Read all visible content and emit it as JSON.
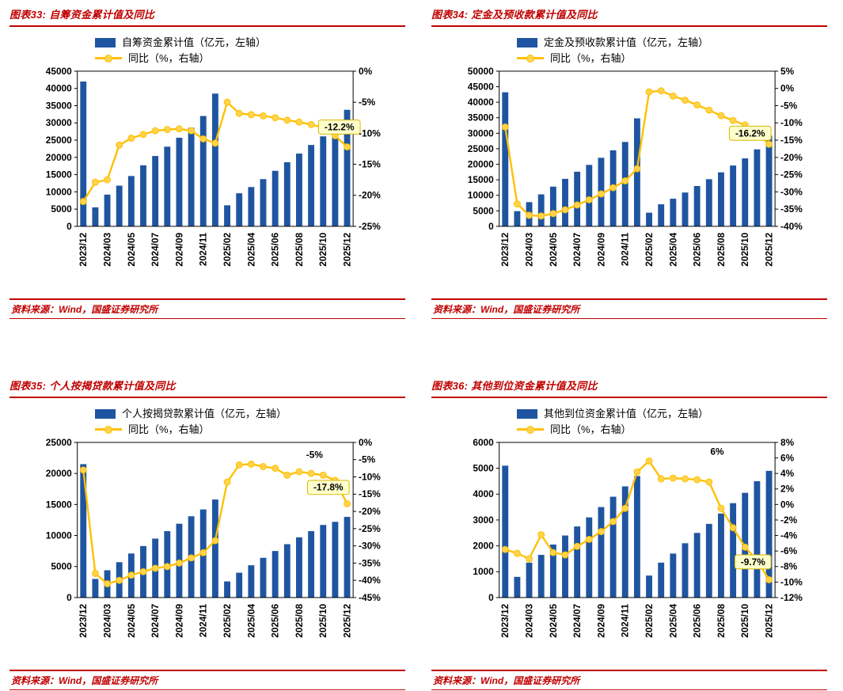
{
  "palette": {
    "accent_red": "#C00000",
    "bar_color": "#1F55A0",
    "line_color": "#FFC000",
    "marker_fill": "#FFD34D",
    "annotation_bg": "#FFFFCC",
    "annotation_border": "#D8B500",
    "axis_text": "#000000",
    "plot_border": "#000000"
  },
  "source_note": "资料来源：Wind，国盛证券研究所",
  "chart_data": [
    {
      "id": "figure-33",
      "type": "combo",
      "title": "图表33:  自筹资金累计值及同比",
      "legend_position": "top",
      "categories": [
        "2023/12",
        "2024/02",
        "2024/03",
        "2024/04",
        "2024/05",
        "2024/06",
        "2024/07",
        "2024/08",
        "2024/09",
        "2024/10",
        "2024/11",
        "2024/12",
        "2025/02",
        "2025/03",
        "2025/04",
        "2025/05",
        "2025/06",
        "2025/07",
        "2025/08",
        "2025/09",
        "2025/10",
        "2025/11",
        "2025/12"
      ],
      "x_label_every": 2,
      "series": [
        {
          "name": "自筹资金累计值（亿元，左轴）",
          "type": "bar",
          "axis": "left",
          "values": [
            42000,
            5500,
            9200,
            11800,
            14600,
            17700,
            20400,
            23100,
            25700,
            28600,
            32000,
            38500,
            6100,
            9600,
            11400,
            13700,
            16100,
            18600,
            21100,
            23600,
            26100,
            28300,
            33800
          ]
        },
        {
          "name": "同比（%，右轴）",
          "type": "line",
          "axis": "right",
          "values": [
            -21.0,
            -17.9,
            -17.5,
            -11.9,
            -10.8,
            -10.2,
            -9.6,
            -9.4,
            -9.3,
            -9.6,
            -10.9,
            -11.6,
            -5.0,
            -6.8,
            -7.0,
            -7.2,
            -7.5,
            -7.9,
            -8.2,
            -8.6,
            -9.1,
            -10.4,
            -12.2
          ]
        }
      ],
      "left_axis": {
        "min": 0,
        "max": 45000,
        "step": 5000
      },
      "right_axis": {
        "min": -25,
        "max": 0,
        "step": 5,
        "suffix": "%"
      },
      "annotations": [
        {
          "text": "-12.2%",
          "fx": 0.95,
          "fy": 0.36,
          "boxed": true
        }
      ]
    },
    {
      "id": "figure-34",
      "type": "combo",
      "title": "图表34:  定金及预收款累计值及同比",
      "legend_position": "top",
      "categories": [
        "2023/12",
        "2024/02",
        "2024/03",
        "2024/04",
        "2024/05",
        "2024/06",
        "2024/07",
        "2024/08",
        "2024/09",
        "2024/10",
        "2024/11",
        "2024/12",
        "2025/02",
        "2025/03",
        "2025/04",
        "2025/05",
        "2025/06",
        "2025/07",
        "2025/08",
        "2025/09",
        "2025/10",
        "2025/11",
        "2025/12"
      ],
      "x_label_every": 2,
      "series": [
        {
          "name": "定金及预收款累计值（亿元，左轴）",
          "type": "bar",
          "axis": "left",
          "values": [
            43200,
            4900,
            7800,
            10300,
            12800,
            15300,
            17600,
            19800,
            22100,
            24500,
            27200,
            34800,
            4400,
            7100,
            8900,
            10900,
            13000,
            15200,
            17400,
            19600,
            21900,
            24800,
            29200
          ]
        },
        {
          "name": "同比（%，右轴）",
          "type": "line",
          "axis": "right",
          "values": [
            -11.2,
            -33.5,
            -36.8,
            -37.0,
            -36.3,
            -35.2,
            -33.8,
            -32.3,
            -30.6,
            -28.8,
            -26.8,
            -23.3,
            -1.0,
            -0.7,
            -2.2,
            -3.4,
            -4.8,
            -6.3,
            -7.9,
            -9.3,
            -10.6,
            -13.0,
            -16.2
          ]
        }
      ],
      "left_axis": {
        "min": 0,
        "max": 50000,
        "step": 5000
      },
      "right_axis": {
        "min": -40,
        "max": 5,
        "step": 5,
        "suffix": "%"
      },
      "annotations": [
        {
          "text": "-16.2%",
          "fx": 0.91,
          "fy": 0.4,
          "boxed": true
        }
      ]
    },
    {
      "id": "figure-35",
      "type": "combo",
      "title": "图表35:  个人按揭贷款累计值及同比",
      "legend_position": "top",
      "categories": [
        "2023/12",
        "2024/02",
        "2024/03",
        "2024/04",
        "2024/05",
        "2024/06",
        "2024/07",
        "2024/08",
        "2024/09",
        "2024/10",
        "2024/11",
        "2024/12",
        "2025/02",
        "2025/03",
        "2025/04",
        "2025/05",
        "2025/06",
        "2025/07",
        "2025/08",
        "2025/09",
        "2025/10",
        "2025/11",
        "2025/12"
      ],
      "x_label_every": 2,
      "series": [
        {
          "name": "个人按揭贷款累计值（亿元，左轴）",
          "type": "bar",
          "axis": "left",
          "values": [
            21500,
            3000,
            4400,
            5700,
            7100,
            8300,
            9500,
            10700,
            11900,
            13100,
            14200,
            15800,
            2600,
            4000,
            5200,
            6400,
            7500,
            8600,
            9700,
            10700,
            11700,
            12200,
            13000
          ]
        },
        {
          "name": "同比（%，右轴）",
          "type": "line",
          "axis": "right",
          "values": [
            -8.0,
            -38.0,
            -41.0,
            -40.0,
            -38.5,
            -37.5,
            -36.5,
            -36.0,
            -35.0,
            -33.5,
            -32.0,
            -28.5,
            -11.5,
            -6.5,
            -6.3,
            -7.0,
            -7.5,
            -9.5,
            -8.5,
            -9.0,
            -9.5,
            -11.0,
            -17.8
          ]
        }
      ],
      "left_axis": {
        "min": 0,
        "max": 25000,
        "step": 5000
      },
      "right_axis": {
        "min": -45,
        "max": 0,
        "step": 5,
        "suffix": "%"
      },
      "annotations": [
        {
          "text": "-17.8%",
          "fx": 0.91,
          "fy": 0.29,
          "boxed": true
        },
        {
          "text": "-5%",
          "fx": 0.86,
          "fy": 0.08,
          "boxed": false
        }
      ]
    },
    {
      "id": "figure-36",
      "type": "combo",
      "title": "图表36:  其他到位资金累计值及同比",
      "legend_position": "top",
      "categories": [
        "2023/12",
        "2024/02",
        "2024/03",
        "2024/04",
        "2024/05",
        "2024/06",
        "2024/07",
        "2024/08",
        "2024/09",
        "2024/10",
        "2024/11",
        "2024/12",
        "2025/02",
        "2025/03",
        "2025/04",
        "2025/05",
        "2025/06",
        "2025/07",
        "2025/08",
        "2025/09",
        "2025/10",
        "2025/11",
        "2025/12"
      ],
      "x_label_every": 2,
      "series": [
        {
          "name": "其他到位资金累计值（亿元，左轴）",
          "type": "bar",
          "axis": "left",
          "values": [
            5100,
            800,
            1350,
            1650,
            2050,
            2400,
            2750,
            3100,
            3500,
            3900,
            4300,
            4700,
            850,
            1350,
            1700,
            2100,
            2500,
            2850,
            3250,
            3650,
            4050,
            4500,
            4900
          ]
        },
        {
          "name": "同比（%，右轴）",
          "type": "line",
          "axis": "right",
          "values": [
            -5.8,
            -6.3,
            -7.0,
            -3.9,
            -6.2,
            -6.5,
            -5.4,
            -4.5,
            -3.5,
            -2.2,
            -0.5,
            4.2,
            5.6,
            3.3,
            3.4,
            3.3,
            3.2,
            2.9,
            -0.5,
            -3.0,
            -5.5,
            -7.2,
            -9.7
          ]
        }
      ],
      "left_axis": {
        "min": 0,
        "max": 6000,
        "step": 1000
      },
      "right_axis": {
        "min": -12,
        "max": 8,
        "step": 2,
        "suffix": "%"
      },
      "annotations": [
        {
          "text": "-9.7%",
          "fx": 0.92,
          "fy": 0.77,
          "boxed": true
        },
        {
          "text": "6%",
          "fx": 0.79,
          "fy": 0.06,
          "boxed": false
        }
      ]
    }
  ]
}
